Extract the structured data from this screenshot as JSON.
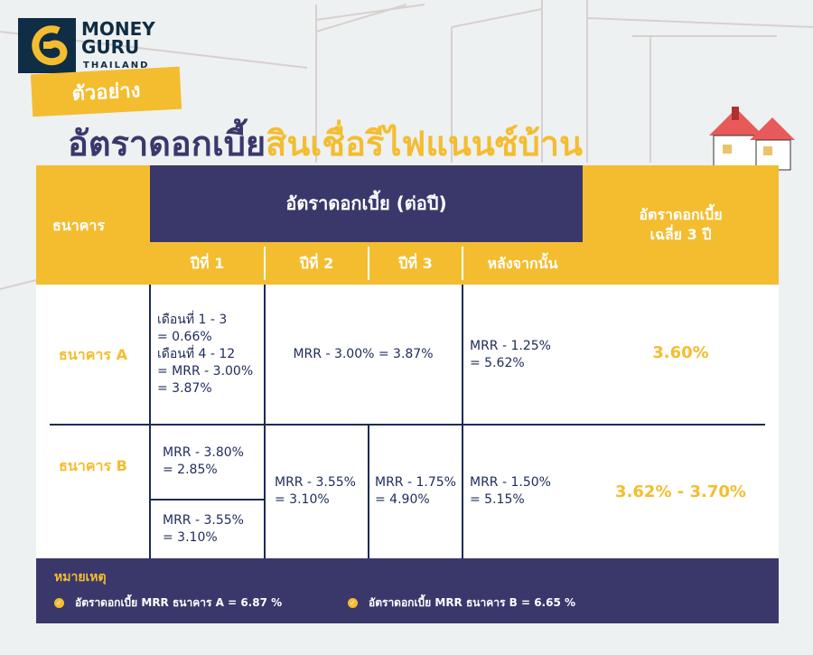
{
  "brand": {
    "line1": "MONEY",
    "line2": "GURU",
    "line3": "THAILAND"
  },
  "tag": "ตัวอย่าง",
  "title": {
    "part1": "อัตราดอกเบี้ย",
    "part2": "สินเชื่อรีไฟแนนซ์บ้าน"
  },
  "colors": {
    "yellow": "#f4bd2f",
    "navy": "#3a386b",
    "dark": "#1d2b5a"
  },
  "table": {
    "bank_header": "ธนาคาร",
    "rate_header": "อัตราดอกเบี้ย (ต่อปี)",
    "avg_header": [
      "อัตราดอกเบี้ย",
      "เฉลี่ย 3 ปี"
    ],
    "years": [
      "ปีที่ 1",
      "ปีที่ 2",
      "ปีที่ 3",
      "หลังจากนั้น"
    ],
    "rows": [
      {
        "bank": "ธนาคาร A",
        "year1": [
          "เดือนที่ 1 - 3",
          "= 0.66%",
          "เดือนที่ 4 - 12",
          "= MRR - 3.00%",
          "= 3.87%"
        ],
        "year23": "MRR - 3.00% = 3.87%",
        "after": [
          "MRR - 1.25%",
          "= 5.62%"
        ],
        "avg": "3.60%"
      },
      {
        "bank": "ธนาคาร B",
        "year1a": [
          "MRR - 3.80%",
          "= 2.85%"
        ],
        "year1b": [
          "MRR - 3.55%",
          "= 3.10%"
        ],
        "year2": [
          "MRR - 3.55%",
          "= 3.10%"
        ],
        "year3": [
          "MRR - 1.75%",
          "= 4.90%"
        ],
        "after": [
          "MRR - 1.50%",
          "= 5.15%"
        ],
        "avg": "3.62% - 3.70%"
      }
    ]
  },
  "note": {
    "title": "หมายเหตุ",
    "items": [
      "อัตราดอกเบี้ย MRR  ธนาคาร A = 6.87 %",
      "อัตราดอกเบี้ย MRR ธนาคาร B = 6.65 %"
    ]
  }
}
